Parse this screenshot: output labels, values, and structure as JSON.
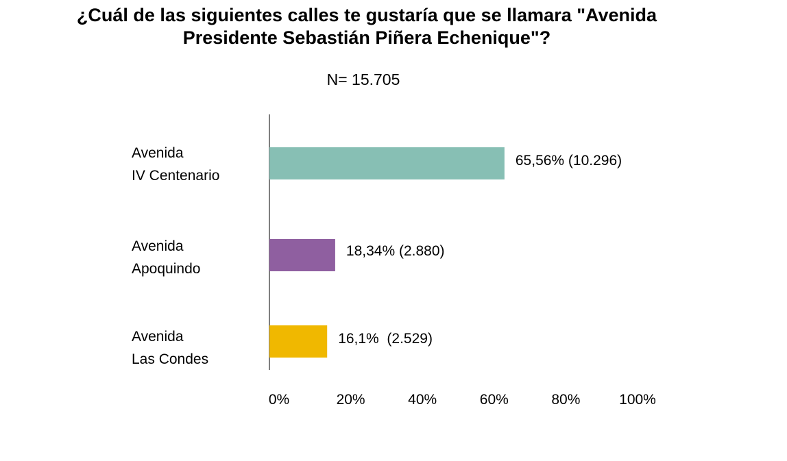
{
  "chart_data": {
    "type": "bar",
    "orientation": "horizontal",
    "title": [
      "¿Cuál de las siguientes calles te gustaría que se llamara \"Avenida",
      "Presidente Sebastián Piñera Echenique\"?"
    ],
    "subtitle": "N= 15.705",
    "categories": [
      [
        "Avenida",
        "IV Centenario"
      ],
      [
        "Avenida",
        "Apoquindo"
      ],
      [
        "Avenida",
        "Las Condes"
      ]
    ],
    "values": [
      65.56,
      18.34,
      16.1
    ],
    "value_labels": [
      "65,56% (10.296)",
      "18,34% (2.880)",
      "16,1%  (2.529)"
    ],
    "colors": [
      "#87bfb4",
      "#8f5fa0",
      "#f0b800"
    ],
    "xlim": [
      0,
      100
    ],
    "xticks": [
      0,
      20,
      40,
      60,
      80,
      100
    ],
    "xtick_labels": [
      "0%",
      "20%",
      "40%",
      "60%",
      "80%",
      "100%"
    ],
    "grid": false,
    "legend": "none"
  }
}
